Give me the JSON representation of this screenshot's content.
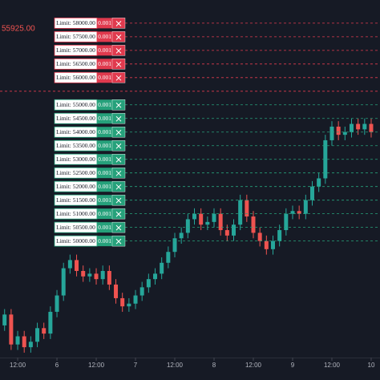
{
  "chart_data": {
    "type": "candlestick",
    "legend_text": "55925.00",
    "up_color": "#26a69a",
    "down_color": "#ef5350",
    "buy_color": "#26a17b",
    "sell_color": "#e03a4e",
    "xlim": [
      -5.4,
      110.7
    ],
    "ylim": [
      45720,
      58850
    ],
    "xticks": [
      {
        "value": 0,
        "label": "12:00"
      },
      {
        "value": 12,
        "label": "6"
      },
      {
        "value": 24,
        "label": "12:00"
      },
      {
        "value": 36,
        "label": "7"
      },
      {
        "value": 48,
        "label": "12:00"
      },
      {
        "value": 60,
        "label": "8"
      },
      {
        "value": 72,
        "label": "12:00"
      },
      {
        "value": 84,
        "label": "9"
      },
      {
        "value": 96,
        "label": "12:00"
      },
      {
        "value": 108,
        "label": "10"
      }
    ],
    "x": [
      -4,
      -2,
      0,
      2,
      4,
      6,
      8,
      10,
      12,
      14,
      16,
      18,
      20,
      22,
      24,
      26,
      28,
      30,
      32,
      34,
      36,
      38,
      40,
      42,
      44,
      46,
      48,
      50,
      52,
      54,
      56,
      58,
      60,
      62,
      64,
      66,
      68,
      70,
      72,
      74,
      76,
      78,
      80,
      82,
      84,
      86,
      88,
      90,
      92,
      94,
      96,
      98,
      100,
      102,
      104,
      106,
      108
    ],
    "open": [
      46900,
      47300,
      46200,
      46500,
      46100,
      46300,
      46800,
      46600,
      47400,
      48000,
      49000,
      49300,
      48900,
      48700,
      48800,
      48600,
      48900,
      48400,
      47900,
      47600,
      47700,
      48000,
      48300,
      48600,
      48800,
      49200,
      49600,
      50100,
      50300,
      50800,
      51000,
      50600,
      50700,
      51000,
      50400,
      50200,
      50600,
      51500,
      50900,
      50300,
      50000,
      49700,
      50000,
      50400,
      51000,
      51100,
      51000,
      51500,
      52000,
      52300,
      53700,
      54200,
      53900,
      54000,
      54300,
      54100,
      54300
    ],
    "high": [
      47500,
      47500,
      46700,
      46700,
      46500,
      47000,
      47000,
      47600,
      48200,
      49200,
      49500,
      49500,
      49100,
      49000,
      49000,
      49100,
      49100,
      48600,
      48100,
      47900,
      48200,
      48500,
      48800,
      49000,
      49400,
      49800,
      50300,
      50500,
      51000,
      51200,
      51200,
      50900,
      51200,
      51200,
      50600,
      50800,
      51700,
      51700,
      51100,
      50500,
      50200,
      50200,
      50600,
      51200,
      51300,
      51300,
      51700,
      52200,
      52500,
      53900,
      54400,
      54400,
      54200,
      54500,
      54500,
      54500,
      54500
    ],
    "low": [
      46700,
      46000,
      46000,
      45900,
      45900,
      46100,
      46400,
      46400,
      47200,
      47800,
      48800,
      48700,
      48500,
      48500,
      48400,
      48400,
      48200,
      47700,
      47400,
      47400,
      47500,
      47800,
      48100,
      48400,
      48600,
      49000,
      49400,
      49900,
      50100,
      50600,
      50400,
      50400,
      50500,
      50200,
      50000,
      50000,
      50400,
      50700,
      50100,
      49800,
      49500,
      49500,
      49800,
      50200,
      50800,
      50800,
      50800,
      51300,
      51800,
      52100,
      53500,
      53700,
      53700,
      53800,
      53900,
      53900,
      53800
    ],
    "close": [
      47300,
      46200,
      46500,
      46100,
      46300,
      46800,
      46600,
      47400,
      48000,
      49000,
      49300,
      48900,
      48700,
      48800,
      48600,
      48900,
      48400,
      47900,
      47600,
      47700,
      48000,
      48300,
      48600,
      48800,
      49200,
      49600,
      50100,
      50300,
      50800,
      51000,
      50600,
      50700,
      51000,
      50400,
      50200,
      50600,
      51500,
      50900,
      50300,
      50000,
      49700,
      50000,
      50400,
      51000,
      51100,
      51000,
      51500,
      52000,
      52300,
      53700,
      54200,
      53900,
      54000,
      54300,
      54100,
      54300,
      54000
    ],
    "marker_lines": [
      {
        "value": 55500,
        "side": "sell"
      }
    ],
    "orders": [
      {
        "label": "Limit: 58000.00",
        "price": 58000,
        "qty": "0.001",
        "side": "sell"
      },
      {
        "label": "Limit: 57500.00",
        "price": 57500,
        "qty": "0.001",
        "side": "sell"
      },
      {
        "label": "Limit: 57000.00",
        "price": 57000,
        "qty": "0.001",
        "side": "sell"
      },
      {
        "label": "Limit: 56500.00",
        "price": 56500,
        "qty": "0.001",
        "side": "sell"
      },
      {
        "label": "Limit: 56000.00",
        "price": 56000,
        "qty": "0.001",
        "side": "sell"
      },
      {
        "label": "Limit: 55000.00",
        "price": 55000,
        "qty": "0.001",
        "side": "buy"
      },
      {
        "label": "Limit: 54500.00",
        "price": 54500,
        "qty": "0.001",
        "side": "buy"
      },
      {
        "label": "Limit: 54000.00",
        "price": 54000,
        "qty": "0.001",
        "side": "buy"
      },
      {
        "label": "Limit: 53500.00",
        "price": 53500,
        "qty": "0.001",
        "side": "buy"
      },
      {
        "label": "Limit: 53000.00",
        "price": 53000,
        "qty": "0.001",
        "side": "buy"
      },
      {
        "label": "Limit: 52500.00",
        "price": 52500,
        "qty": "0.001",
        "side": "buy"
      },
      {
        "label": "Limit: 52000.00",
        "price": 52000,
        "qty": "0.001",
        "side": "buy"
      },
      {
        "label": "Limit: 51500.00",
        "price": 51500,
        "qty": "0.001",
        "side": "buy"
      },
      {
        "label": "Limit: 51000.00",
        "price": 51000,
        "qty": "0.001",
        "side": "buy"
      },
      {
        "label": "Limit: 50500.00",
        "price": 50500,
        "qty": "0.001",
        "side": "buy"
      },
      {
        "label": "Limit: 50000.00",
        "price": 50000,
        "qty": "0.001",
        "side": "buy"
      }
    ]
  }
}
